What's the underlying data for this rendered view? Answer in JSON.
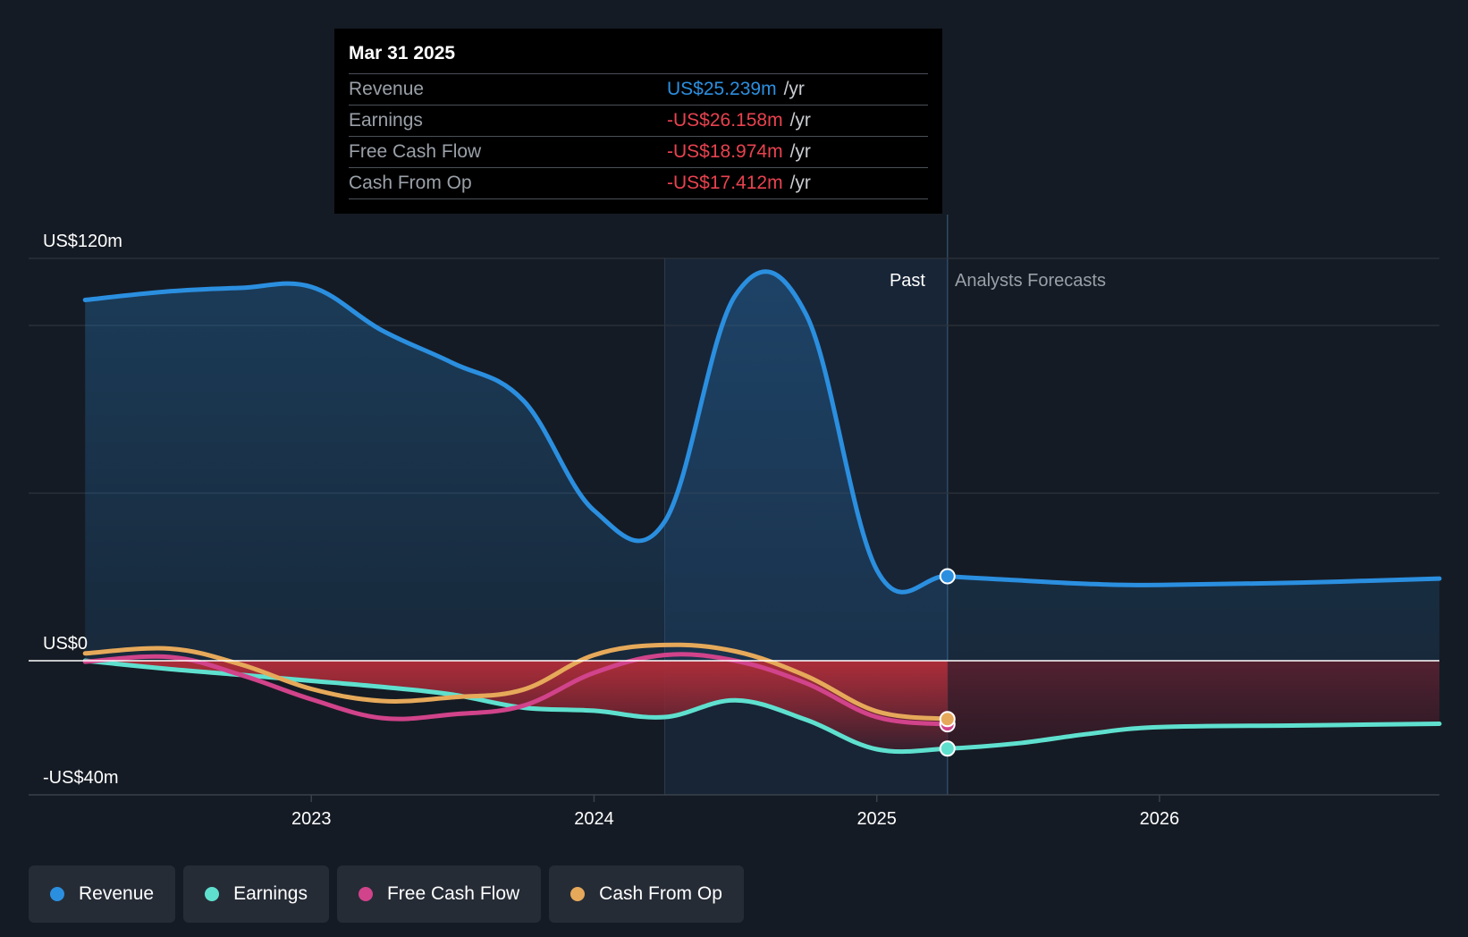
{
  "tooltip": {
    "date": "Mar 31 2025",
    "rows": [
      {
        "label": "Revenue",
        "value": "US$25.239m",
        "unit": "/yr",
        "color": "#2b8fe0"
      },
      {
        "label": "Earnings",
        "value": "-US$26.158m",
        "unit": "/yr",
        "color": "#e8424f"
      },
      {
        "label": "Free Cash Flow",
        "value": "-US$18.974m",
        "unit": "/yr",
        "color": "#e8424f"
      },
      {
        "label": "Cash From Op",
        "value": "-US$17.412m",
        "unit": "/yr",
        "color": "#e8424f"
      }
    ]
  },
  "labels": {
    "past": "Past",
    "forecast": "Analysts Forecasts"
  },
  "legend": [
    {
      "label": "Revenue",
      "color": "#2b8fe0"
    },
    {
      "label": "Earnings",
      "color": "#5fe0cf"
    },
    {
      "label": "Free Cash Flow",
      "color": "#d1438b"
    },
    {
      "label": "Cash From Op",
      "color": "#e6a95a"
    }
  ],
  "chart_data": {
    "type": "line",
    "title": "",
    "xlabel": "",
    "ylabel": "",
    "y_unit": "US$ m",
    "ylim": [
      -40,
      120
    ],
    "y_tick_labels": [
      {
        "value": 120,
        "label": "US$120m"
      },
      {
        "value": 0,
        "label": "US$0"
      },
      {
        "value": -40,
        "label": "-US$40m"
      }
    ],
    "y_gridlines": [
      120,
      100,
      50,
      0
    ],
    "x_ticks": [
      {
        "value": 2023,
        "label": "2023"
      },
      {
        "value": 2024,
        "label": "2024"
      },
      {
        "value": 2025,
        "label": "2025"
      },
      {
        "value": 2026,
        "label": "2026"
      }
    ],
    "xlim": [
      2022.0,
      2026.99
    ],
    "highlight_start": 2024.25,
    "past_end": 2025.25,
    "legend_position": "bottom-left",
    "series": [
      {
        "name": "Revenue",
        "color": "#2b8fe0",
        "points": [
          [
            2022.2,
            107.6
          ],
          [
            2022.5,
            110.2
          ],
          [
            2022.75,
            111.2
          ],
          [
            2023.0,
            111.5
          ],
          [
            2023.25,
            98.5
          ],
          [
            2023.5,
            88.8
          ],
          [
            2023.75,
            77.6
          ],
          [
            2024.0,
            44.8
          ],
          [
            2024.25,
            41.5
          ],
          [
            2024.5,
            109.0
          ],
          [
            2024.75,
            103.3
          ],
          [
            2025.0,
            27.1
          ],
          [
            2025.25,
            25.2
          ],
          [
            2025.5,
            24.0
          ],
          [
            2025.75,
            22.9
          ],
          [
            2026.0,
            22.6
          ],
          [
            2026.5,
            23.3
          ],
          [
            2026.99,
            24.5
          ]
        ],
        "marker_at": 2025.25
      },
      {
        "name": "Earnings",
        "color": "#5fe0cf",
        "points": [
          [
            2022.2,
            0.0
          ],
          [
            2022.5,
            -2.5
          ],
          [
            2022.75,
            -4.2
          ],
          [
            2023.0,
            -6.0
          ],
          [
            2023.25,
            -7.8
          ],
          [
            2023.5,
            -10.1
          ],
          [
            2023.75,
            -14.0
          ],
          [
            2024.0,
            -14.9
          ],
          [
            2024.25,
            -16.8
          ],
          [
            2024.5,
            -11.8
          ],
          [
            2024.75,
            -17.6
          ],
          [
            2025.0,
            -26.4
          ],
          [
            2025.25,
            -26.2
          ],
          [
            2025.5,
            -24.6
          ],
          [
            2025.75,
            -21.8
          ],
          [
            2026.0,
            -19.8
          ],
          [
            2026.5,
            -19.3
          ],
          [
            2026.99,
            -18.8
          ]
        ],
        "marker_at": 2025.25
      },
      {
        "name": "Free Cash Flow",
        "color": "#d1438b",
        "points": [
          [
            2022.2,
            -0.3
          ],
          [
            2022.5,
            1.1
          ],
          [
            2022.75,
            -4.2
          ],
          [
            2023.0,
            -11.5
          ],
          [
            2023.25,
            -17.1
          ],
          [
            2023.5,
            -16.0
          ],
          [
            2023.75,
            -13.4
          ],
          [
            2024.0,
            -3.6
          ],
          [
            2024.25,
            1.7
          ],
          [
            2024.5,
            0.0
          ],
          [
            2024.75,
            -6.7
          ],
          [
            2025.0,
            -16.8
          ],
          [
            2025.25,
            -18.97
          ]
        ],
        "marker_at": 2025.25
      },
      {
        "name": "Cash From Op",
        "color": "#e6a95a",
        "points": [
          [
            2022.2,
            2.2
          ],
          [
            2022.5,
            3.6
          ],
          [
            2022.75,
            -1.1
          ],
          [
            2023.0,
            -8.4
          ],
          [
            2023.25,
            -12.0
          ],
          [
            2023.5,
            -10.9
          ],
          [
            2023.75,
            -8.6
          ],
          [
            2024.0,
            1.7
          ],
          [
            2024.25,
            4.7
          ],
          [
            2024.5,
            2.8
          ],
          [
            2024.75,
            -4.5
          ],
          [
            2025.0,
            -15.1
          ],
          [
            2025.25,
            -17.41
          ]
        ],
        "marker_at": 2025.25
      }
    ]
  }
}
